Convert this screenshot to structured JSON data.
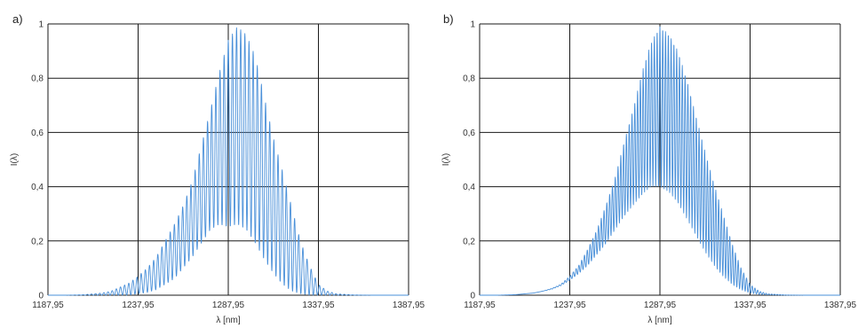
{
  "chart_data": [
    {
      "type": "line",
      "panel_label": "a)",
      "xlabel": "λ [nm]",
      "ylabel": "I(λ)",
      "xlim": [
        1187.95,
        1387.95
      ],
      "ylim": [
        0,
        1
      ],
      "x_ticks": [
        "1187,95",
        "1237,95",
        "1287,95",
        "1337,95",
        "1387,95"
      ],
      "y_ticks": [
        "0",
        "0,2",
        "0,4",
        "0,6",
        "0,8",
        "1"
      ],
      "grid": true,
      "color": "#4a90d9",
      "series": [
        {
          "x": [
            1197.95,
            1207.95,
            1217.95,
            1222.95,
            1227.95,
            1232.95,
            1237.95,
            1242.95,
            1247.95,
            1252.95,
            1257.95,
            1262.95,
            1267.95,
            1272.95,
            1277.95,
            1282.95,
            1287.95,
            1292.95,
            1297.95,
            1302.95,
            1307.95,
            1312.95,
            1317.95,
            1322.95,
            1327.95,
            1332.95,
            1337.95,
            1342.95,
            1347.95,
            1357.95,
            1367.95,
            1377.95
          ],
          "upper": [
            0.0,
            0.002,
            0.008,
            0.015,
            0.03,
            0.045,
            0.07,
            0.1,
            0.14,
            0.2,
            0.26,
            0.33,
            0.42,
            0.55,
            0.68,
            0.82,
            0.94,
            0.99,
            0.96,
            0.88,
            0.73,
            0.58,
            0.46,
            0.33,
            0.2,
            0.11,
            0.04,
            0.015,
            0.005,
            0.001,
            0.0,
            0.0
          ],
          "lower": [
            0.0,
            0.0,
            0.0,
            0.0,
            0.0,
            0.0,
            0.005,
            0.01,
            0.02,
            0.04,
            0.06,
            0.1,
            0.14,
            0.19,
            0.24,
            0.26,
            0.25,
            0.26,
            0.24,
            0.19,
            0.13,
            0.08,
            0.04,
            0.015,
            0.005,
            0.0,
            0.0,
            0.0,
            0.0,
            0.0,
            0.0,
            0.0
          ],
          "fringe_period_nm": 2.3
        }
      ]
    },
    {
      "type": "line",
      "panel_label": "b)",
      "xlabel": "λ [nm]",
      "ylabel": "I(λ)",
      "xlim": [
        1187.95,
        1387.95
      ],
      "ylim": [
        0,
        1
      ],
      "x_ticks": [
        "1187,95",
        "1237,95",
        "1287,95",
        "1337,95",
        "1387,95"
      ],
      "y_ticks": [
        "0",
        "0,2",
        "0,4",
        "0,6",
        "0,8",
        "1"
      ],
      "grid": true,
      "color": "#4a90d9",
      "series": [
        {
          "x": [
            1197.95,
            1207.95,
            1217.95,
            1222.95,
            1227.95,
            1232.95,
            1237.95,
            1242.95,
            1247.95,
            1252.95,
            1257.95,
            1262.95,
            1267.95,
            1272.95,
            1277.95,
            1282.95,
            1287.95,
            1292.95,
            1297.95,
            1302.95,
            1307.95,
            1312.95,
            1317.95,
            1322.95,
            1327.95,
            1332.95,
            1337.95,
            1342.95,
            1347.95,
            1357.95,
            1367.95,
            1377.95
          ],
          "upper": [
            0.0,
            0.002,
            0.008,
            0.015,
            0.025,
            0.04,
            0.07,
            0.11,
            0.17,
            0.24,
            0.33,
            0.43,
            0.56,
            0.68,
            0.82,
            0.93,
            0.99,
            0.96,
            0.9,
            0.79,
            0.66,
            0.53,
            0.41,
            0.3,
            0.19,
            0.1,
            0.04,
            0.015,
            0.005,
            0.001,
            0.0,
            0.0
          ],
          "lower": [
            0.0,
            0.002,
            0.008,
            0.015,
            0.022,
            0.035,
            0.055,
            0.08,
            0.11,
            0.15,
            0.19,
            0.24,
            0.29,
            0.33,
            0.37,
            0.4,
            0.4,
            0.38,
            0.34,
            0.28,
            0.22,
            0.16,
            0.11,
            0.07,
            0.04,
            0.02,
            0.008,
            0.003,
            0.001,
            0.0,
            0.0,
            0.0
          ],
          "fringe_period_nm": 1.55
        }
      ]
    }
  ]
}
